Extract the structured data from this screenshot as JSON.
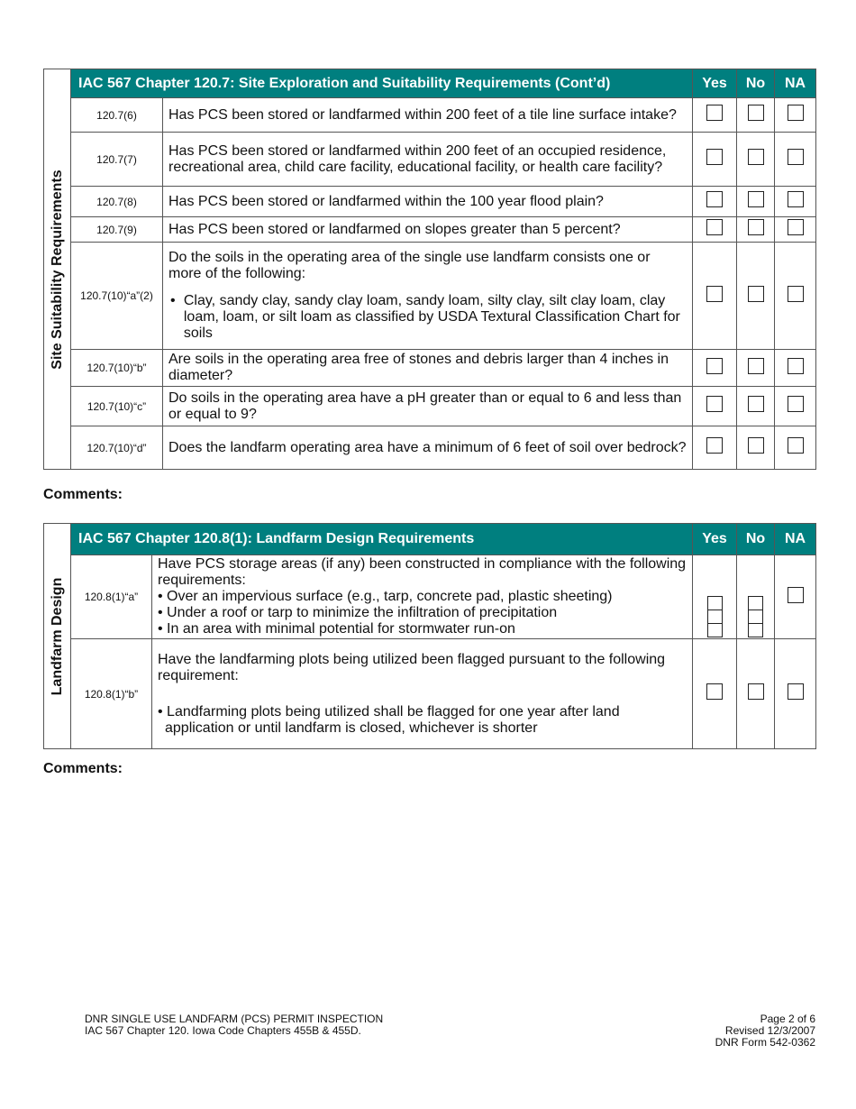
{
  "table1": {
    "side_label": "Site Suitability Requirements",
    "title": "IAC 567 Chapter 120.7:  Site Exploration and Suitability Requirements (Cont’d)",
    "yes": "Yes",
    "no": "No",
    "na": "NA",
    "rows": [
      {
        "ref": "120.7(6)",
        "q": "Has PCS been stored or landfarmed within 200 feet of a tile line surface intake?"
      },
      {
        "ref": "120.7(7)",
        "q": "Has PCS been stored or landfarmed within 200 feet of an occupied residence, recreational area, child care facility, educational facility, or health care facility?"
      },
      {
        "ref": "120.7(8)",
        "q": "Has PCS been stored or landfarmed within the 100 year flood plain?"
      },
      {
        "ref": "120.7(9)",
        "q": "Has PCS been stored or landfarmed on slopes greater than 5 percent?"
      },
      {
        "ref": "120.7(10)“a”(2)",
        "q": "Do the soils in the operating area of the single use landfarm consists one or more of the following:",
        "bullet": "Clay, sandy clay, sandy clay loam, sandy loam, silty clay, silt clay loam, clay loam, loam, or silt loam as classified by USDA Textural Classification Chart for soils"
      },
      {
        "ref": "120.7(10)“b”",
        "q": "Are soils in the operating area free of stones and debris larger than 4 inches in diameter?"
      },
      {
        "ref": "120.7(10)“c”",
        "q": "Do soils in the operating area have a pH greater than or equal to 6 and less than or equal to 9?"
      },
      {
        "ref": "120.7(10)“d”",
        "q": "Does the landfarm operating area have a minimum of 6 feet of soil over bedrock?"
      }
    ]
  },
  "comments1": "Comments:",
  "table2": {
    "side_label": "Landfarm Design",
    "title": "IAC 567 Chapter 120.8(1):  Landfarm Design Requirements",
    "yes": "Yes",
    "no": "No",
    "na": "NA",
    "rows": [
      {
        "ref": "120.8(1)“a”",
        "q": "Have PCS storage areas (if any) been constructed in compliance with the following requirements:",
        "bullets": [
          "• Over an impervious surface (e.g., tarp, concrete pad, plastic sheeting)",
          "• Under a roof or tarp to minimize the infiltration of precipitation",
          "• In an area with minimal potential for stormwater run-on"
        ]
      },
      {
        "ref": "120.8(1)“b”",
        "q": "Have the landfarming plots being utilized been flagged pursuant to the following requirement:",
        "bullets": [
          "• Landfarming plots being utilized shall be flagged for one year after land application or until landfarm is closed, whichever is shorter"
        ]
      }
    ]
  },
  "comments2": "Comments:",
  "footer": {
    "left1": "DNR SINGLE USE LANDFARM (PCS) PERMIT INSPECTION",
    "left2": "IAC 567 Chapter 120. Iowa Code Chapters 455B & 455D.",
    "right1": "Page 2 of 6",
    "right2": "Revised 12/3/2007",
    "right3": "DNR Form 542-0362"
  },
  "colors": {
    "header": "#007f7f"
  }
}
